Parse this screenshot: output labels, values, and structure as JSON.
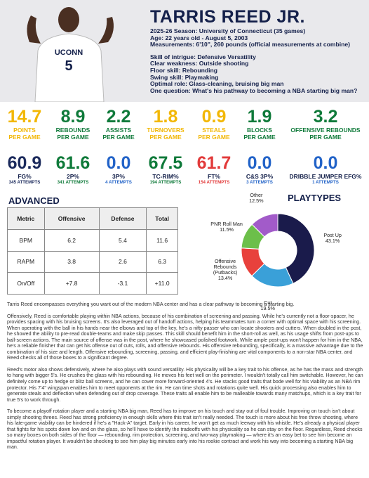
{
  "header": {
    "name": "TARRIS REED JR.",
    "lines": [
      "2025-26 Season: University of Connecticut (35 games)",
      "Age: 22 years old - August 5, 2003",
      "Measurements: 6'10\", 260 pounds (official measurements at combine)"
    ],
    "traits": [
      "Skill of intrigue: Defensive Versatility",
      "Clear weakness: Outside shooting",
      "Floor skill: Rebounding",
      "Swing skill:  Playmaking",
      "Optimal role: Glass-cleaning, bruising big man",
      "One question: What's his pathway to becoming a NBA starting big man?"
    ],
    "jersey": [
      "UCONN",
      "5"
    ]
  },
  "stats": {
    "per_game": [
      {
        "value": "14.7",
        "label": "POINTS",
        "sub": "PER GAME",
        "color": "#f2b705"
      },
      {
        "value": "8.9",
        "label": "REBOUNDS",
        "sub": "PER GAME",
        "color": "#0f7a3a"
      },
      {
        "value": "2.2",
        "label": "ASSISTS",
        "sub": "PER GAME",
        "color": "#0f7a3a"
      },
      {
        "value": "1.8",
        "label": "TURNOVERS",
        "sub": "PER GAME",
        "color": "#f2b705"
      },
      {
        "value": "0.9",
        "label": "STEALS",
        "sub": "PER GAME",
        "color": "#f2b705"
      },
      {
        "value": "1.9",
        "label": "BLOCKS",
        "sub": "PER GAME",
        "color": "#0f7a3a"
      },
      {
        "value": "3.2",
        "label": "OFFENSIVE REBOUNDS",
        "sub": "PER GAME",
        "color": "#0f7a3a"
      }
    ],
    "shooting": [
      {
        "value": "60.9",
        "label": "FG%",
        "attempts": "345 ATTEMPTS",
        "color": "#1b2a5c"
      },
      {
        "value": "61.6",
        "label": "2P%",
        "attempts": "341 ATTEMPTS",
        "color": "#0f7a3a"
      },
      {
        "value": "0.0",
        "label": "3P%",
        "attempts": "4 ATTEMPTS",
        "color": "#2263c8"
      },
      {
        "value": "67.5",
        "label": "TC-RIM%",
        "attempts": "194 ATTEMPTS",
        "color": "#0f7a3a"
      },
      {
        "value": "61.7",
        "label": "FT%",
        "attempts": "154 ATTEMPTS",
        "color": "#e23b3b"
      },
      {
        "value": "0.0",
        "label": "C&S 3P%",
        "attempts": "3 ATTEMPTS",
        "color": "#2263c8"
      },
      {
        "value": "0.0",
        "label": "DRIBBLE JUMPER EFG%",
        "attempts": "1 ATTEMPTS",
        "color": "#2263c8"
      }
    ]
  },
  "advanced": {
    "title": "ADVANCED",
    "columns": [
      "Metric",
      "Offensive",
      "Defense",
      "Total"
    ],
    "rows": [
      [
        "BPM",
        "6.2",
        "5.4",
        "11.6"
      ],
      [
        "RAPM",
        "3.8",
        "2.6",
        "6.3"
      ],
      [
        "On/Off",
        "+7.8",
        "-3.1",
        "+11.0"
      ]
    ]
  },
  "chart_data": {
    "type": "pie",
    "title": "PLAYTYPES",
    "categories": [
      "Post Up",
      "Cut",
      "Offensive Rebounds (Putbacks)",
      "PNR Roll Man",
      "Other"
    ],
    "values": [
      43.1,
      19.5,
      13.4,
      11.5,
      12.5
    ],
    "value_labels": [
      "43.1%",
      "19.5%",
      "13.4%",
      "11.5%",
      "12.5%"
    ],
    "colors": [
      "#1a1b4b",
      "#3aa0d8",
      "#e8413c",
      "#6cbf4a",
      "#a25bc9"
    ]
  },
  "body": {
    "paragraphs": [
      "Tarris Reed encompasses everything you want out of the modern NBA center and has a clear pathway to becoming a starting big.",
      "Offensively, Reed is comfortable playing within NBA actions, because of his combination of screening and passing. While he's currently not a floor-spacer, he provides spacing with his bruising screens. It's also leveraged out of handoff actions, helping his teammates turn a corner with optimal space with his screening. When operating with the ball in his hands near the elbows and top of the key, he's a nifty passer who can locate shooters and cutters. When doubled in the post, he showed the ability to pre-read double-teams and make skip passes. This skill should benefit him in the short-roll as well, as his usage shifts from post-ups to ball-screen actions. The main source of offense was in the post, where he showcased polished footwork. While ample post-ups won't happen for him in the NBA, he's a reliable finisher that can get his offense out of cuts, rolls, and offensive rebounds. His offensive rebounding, specifically, is a massive advantage due to the combination of his size and length. Offensive rebounding, screening, passing, and efficient play-finishing are vital components to a non-star NBA center, and Reed checks all of those boxes to a significant degree.",
      "Reed's motor also shows defensively, where he also plays with sound versatility. His physicality will be a key trait to his offense, as he has the mass and strength to hang with bigger 5's. He crushes the glass with his rebounding. He moves his feet well on the perimeter. I wouldn't totally call him switchable. However, he can definitely come up to hedge or blitz ball screens, and he can cover more forward-oriented 4's. He stacks good traits that bode well for his viability as an NBA rim protector. His 7'4\" wingspan enables him to meet opponents at the rim. He can time shots and rotations quite well. His quick processing also enables him to generate steals and deflection when defending out of drop coverage. These traits all enable him to be malleable towards many matchups, which is a key trait for true 5's to work through.",
      "To become a playoff rotation player and a starting NBA big man, Reed has to improve on his touch and stay out of foul trouble. Improving on touch isn't about simply shooting threes. Reed has strong proficiency in enough skills where this trait isn't really needed. The touch is more about his free throw shooting, where his late-game viability can be hindered if he's a \"Hack-A\" target. Early in his career, he won't get as much leeway with his whistle. He's already a physical player that fights for his spots down low and on the glass, so he'll have to identify the tradeoffs with his physicality so he can stay on the floor. Regardless, Reed checks so many boxes on both sides of the floor — rebounding, rim protection, screening, and two-way playmaking — where it's an easy bet to see him become an impactful rotation player. It wouldn't be shocking to see him play big minutes early into his rookie contract and work his way into becoming a starting NBA big man."
    ]
  }
}
